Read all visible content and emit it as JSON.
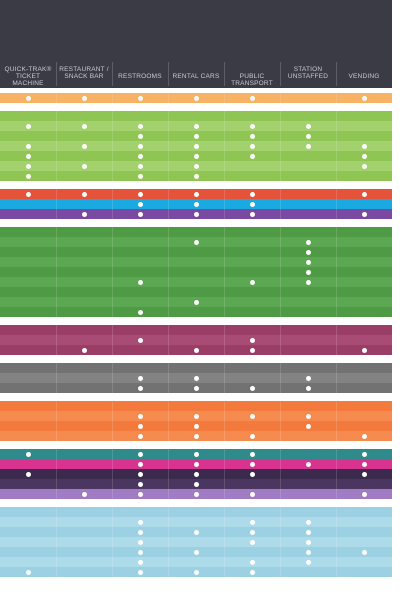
{
  "columns": [
    "QUICK-TRAK®\nTICKET MACHINE",
    "RESTAURANT /\nSNACK BAR",
    "RESTROOMS",
    "RENTAL CARS",
    "PUBLIC TRANSPORT",
    "STATION\nUNSTAFFED",
    "VENDING"
  ],
  "groups": [
    {
      "name": "orange-light",
      "colors": [
        "#f7b263"
      ],
      "dots": [
        [
          1,
          1,
          1,
          1,
          1,
          0,
          1
        ]
      ]
    },
    {
      "name": "light-green",
      "colors": [
        "#8fc653",
        "#a3d16d"
      ],
      "dots": [
        [
          0,
          0,
          0,
          0,
          0,
          0,
          0
        ],
        [
          1,
          1,
          1,
          1,
          1,
          1,
          0
        ],
        [
          0,
          0,
          1,
          1,
          1,
          1,
          0
        ],
        [
          1,
          1,
          1,
          1,
          1,
          1,
          1
        ],
        [
          1,
          0,
          1,
          1,
          1,
          0,
          1
        ],
        [
          1,
          1,
          1,
          1,
          0,
          0,
          1
        ],
        [
          1,
          0,
          1,
          1,
          0,
          0,
          0
        ]
      ]
    },
    {
      "name": "red",
      "colors": [
        "#e5533a"
      ],
      "dots": [
        [
          1,
          1,
          1,
          1,
          1,
          0,
          1
        ]
      ]
    },
    {
      "name": "blue",
      "colors": [
        "#1aa9e0"
      ],
      "dots": [
        [
          0,
          0,
          1,
          1,
          1,
          0,
          0
        ]
      ]
    },
    {
      "name": "purple",
      "colors": [
        "#7a4aa3"
      ],
      "dots": [
        [
          0,
          1,
          1,
          1,
          1,
          0,
          1
        ]
      ]
    },
    {
      "name": "dark-green",
      "colors": [
        "#4e9a45",
        "#5ca751"
      ],
      "dots": [
        [
          0,
          0,
          0,
          0,
          0,
          0,
          0
        ],
        [
          0,
          0,
          0,
          1,
          0,
          1,
          0
        ],
        [
          0,
          0,
          0,
          0,
          0,
          1,
          0
        ],
        [
          0,
          0,
          0,
          0,
          0,
          1,
          0
        ],
        [
          0,
          0,
          0,
          0,
          0,
          1,
          0
        ],
        [
          0,
          0,
          1,
          0,
          1,
          1,
          0
        ],
        [
          0,
          0,
          0,
          0,
          0,
          0,
          0
        ],
        [
          0,
          0,
          0,
          1,
          0,
          0,
          0
        ],
        [
          0,
          0,
          1,
          0,
          0,
          0,
          0
        ]
      ]
    },
    {
      "name": "plum",
      "colors": [
        "#9a3e68",
        "#a84c76"
      ],
      "dots": [
        [
          0,
          0,
          0,
          0,
          0,
          0,
          0
        ],
        [
          0,
          0,
          1,
          0,
          1,
          0,
          0
        ],
        [
          0,
          1,
          0,
          1,
          1,
          0,
          1
        ]
      ]
    },
    {
      "name": "gray",
      "colors": [
        "#727272",
        "#838383"
      ],
      "dots": [
        [
          0,
          0,
          0,
          0,
          0,
          0,
          0
        ],
        [
          0,
          0,
          1,
          1,
          0,
          1,
          0
        ],
        [
          0,
          0,
          1,
          1,
          1,
          1,
          0
        ]
      ]
    },
    {
      "name": "orange",
      "colors": [
        "#f37a3c",
        "#f68b50"
      ],
      "dots": [
        [
          0,
          0,
          0,
          0,
          0,
          0,
          0
        ],
        [
          0,
          0,
          1,
          1,
          1,
          1,
          0
        ],
        [
          0,
          0,
          1,
          1,
          0,
          1,
          0
        ],
        [
          0,
          0,
          1,
          1,
          1,
          0,
          1
        ]
      ]
    },
    {
      "name": "teal",
      "colors": [
        "#2f8a8c"
      ],
      "dots": [
        [
          1,
          0,
          1,
          1,
          1,
          0,
          1
        ]
      ]
    },
    {
      "name": "magenta",
      "colors": [
        "#d8338e"
      ],
      "dots": [
        [
          0,
          0,
          1,
          1,
          1,
          1,
          1
        ]
      ]
    },
    {
      "name": "deep-purple",
      "colors": [
        "#3c2a4e",
        "#4a3660"
      ],
      "dots": [
        [
          1,
          0,
          1,
          1,
          1,
          0,
          1
        ],
        [
          0,
          0,
          1,
          1,
          0,
          0,
          0
        ]
      ]
    },
    {
      "name": "lavender",
      "colors": [
        "#a17bc4"
      ],
      "dots": [
        [
          0,
          1,
          1,
          1,
          1,
          0,
          1
        ]
      ]
    },
    {
      "name": "light-blue",
      "colors": [
        "#9bd1e3",
        "#addbea"
      ],
      "dots": [
        [
          0,
          0,
          0,
          0,
          0,
          0,
          0
        ],
        [
          0,
          0,
          1,
          0,
          1,
          1,
          0
        ],
        [
          0,
          0,
          1,
          1,
          1,
          1,
          0
        ],
        [
          0,
          0,
          1,
          0,
          1,
          1,
          0
        ],
        [
          0,
          0,
          1,
          1,
          0,
          1,
          1
        ],
        [
          0,
          0,
          1,
          0,
          1,
          1,
          0
        ],
        [
          1,
          0,
          1,
          1,
          1,
          0,
          0
        ]
      ]
    }
  ]
}
